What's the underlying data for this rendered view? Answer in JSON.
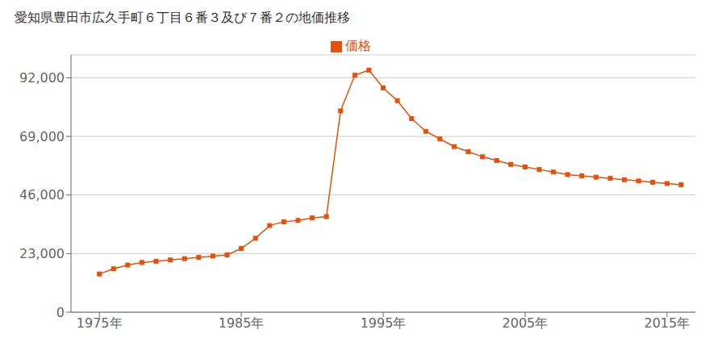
{
  "chart_data": {
    "type": "line",
    "title": "愛知県豊田市広久手町６丁目６番３及び７番２の地価推移",
    "x": [
      1975,
      1976,
      1977,
      1978,
      1979,
      1980,
      1981,
      1982,
      1983,
      1984,
      1985,
      1986,
      1987,
      1988,
      1989,
      1990,
      1991,
      1992,
      1993,
      1994,
      1995,
      1996,
      1997,
      1998,
      1999,
      2000,
      2001,
      2002,
      2003,
      2004,
      2005,
      2006,
      2007,
      2008,
      2009,
      2010,
      2011,
      2012,
      2013,
      2014,
      2015,
      2016
    ],
    "series": [
      {
        "name": "価格",
        "color": "#E8500A",
        "marker": "square",
        "values": [
          15000,
          17000,
          18500,
          19500,
          20000,
          20500,
          21000,
          21500,
          22000,
          22500,
          25000,
          29000,
          34000,
          35500,
          36000,
          37000,
          37500,
          79000,
          93000,
          95000,
          88000,
          83000,
          76000,
          71000,
          68000,
          65000,
          63000,
          61000,
          59500,
          58000,
          57000,
          56000,
          55000,
          54000,
          53500,
          53000,
          52500,
          52000,
          51500,
          51000,
          50500,
          50000
        ]
      }
    ],
    "xlim": [
      1973,
      2017
    ],
    "xticks": [
      {
        "value": 1975,
        "label": "1975年"
      },
      {
        "value": 1985,
        "label": "1985年"
      },
      {
        "value": 1995,
        "label": "1995年"
      },
      {
        "value": 2005,
        "label": "2005年"
      },
      {
        "value": 2015,
        "label": "2015年"
      }
    ],
    "ylim": [
      0,
      101000
    ],
    "yticks": [
      0,
      {
        "value": 23000,
        "label": "23,000"
      },
      {
        "value": 46000,
        "label": "46,000"
      },
      {
        "value": 69000,
        "label": "69,000"
      },
      {
        "value": 92000,
        "label": "92,000"
      }
    ],
    "grid": "y",
    "legend": "top"
  }
}
